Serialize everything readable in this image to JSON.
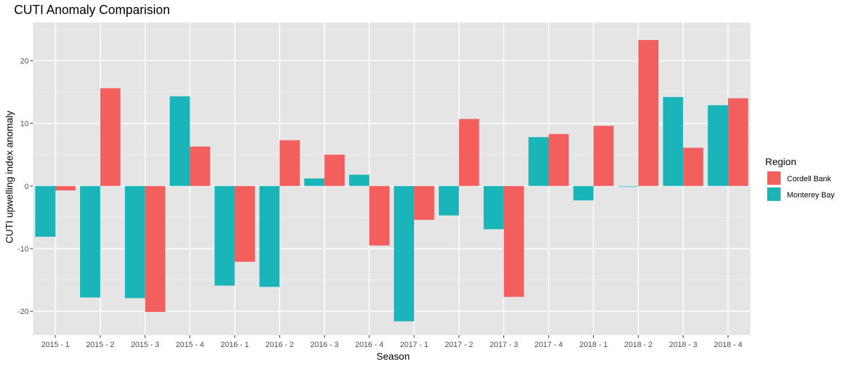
{
  "chart_data": {
    "type": "bar",
    "title": "CUTI Anomaly Comparision",
    "xlabel": "Season",
    "ylabel": "CUTI upwelling index anomaly",
    "categories": [
      "2015 - 1",
      "2015 - 2",
      "2015 - 3",
      "2015 - 4",
      "2016 - 1",
      "2016 - 2",
      "2016 - 3",
      "2016 - 4",
      "2017 - 1",
      "2017 - 2",
      "2017 - 3",
      "2017 - 4",
      "2018 - 1",
      "2018 - 2",
      "2018 - 3",
      "2018 - 4"
    ],
    "series": [
      {
        "name": "Monterey Bay",
        "color": "#1ab5b8",
        "values": [
          -8.1,
          -17.8,
          -17.9,
          14.3,
          -15.9,
          -16.1,
          1.2,
          1.8,
          -21.6,
          -4.7,
          -6.9,
          7.8,
          -2.3,
          -0.1,
          14.2,
          12.9
        ]
      },
      {
        "name": "Cordell Bank",
        "color": "#f35f5c",
        "values": [
          -0.7,
          15.6,
          -20.1,
          6.3,
          -12.1,
          7.3,
          5.0,
          -9.5,
          -5.4,
          10.7,
          -17.7,
          8.3,
          9.6,
          23.3,
          6.1,
          14.0
        ]
      }
    ],
    "ylim": [
      -23.8,
      26.1
    ],
    "yticks": [
      -20,
      -10,
      0,
      10,
      20
    ],
    "grid": true,
    "legend": {
      "title": "Region",
      "position": "right",
      "order": [
        "Cordell Bank",
        "Monterey Bay"
      ]
    },
    "panel_background": "#e5e5e5"
  }
}
